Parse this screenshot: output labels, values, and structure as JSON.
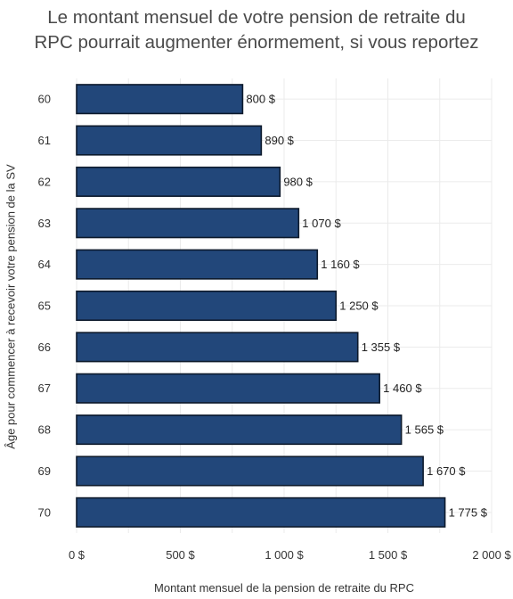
{
  "chart_data": {
    "type": "bar",
    "orientation": "horizontal",
    "title_lines": [
      "Le montant mensuel de votre pension de retraite du",
      "RPC pourrait augmenter énormement, si vous reportez"
    ],
    "xlabel": "Montant mensuel de la pension de retraite du RPC",
    "ylabel": "Âge pour commencer à recevoir votre pension de la SV",
    "categories": [
      "60",
      "61",
      "62",
      "63",
      "64",
      "65",
      "66",
      "67",
      "68",
      "69",
      "70"
    ],
    "values": [
      800,
      890,
      980,
      1070,
      1160,
      1250,
      1355,
      1460,
      1565,
      1670,
      1775
    ],
    "data_labels": [
      "800 $",
      "890 $",
      "980 $",
      "1 070 $",
      "1 160 $",
      "1 250 $",
      "1 355 $",
      "1 460 $",
      "1 565 $",
      "1 670 $",
      "1 775 $"
    ],
    "xlim": [
      0,
      2000
    ],
    "x_ticks": [
      0,
      500,
      1000,
      1500,
      2000
    ],
    "x_tick_labels": [
      "0 $",
      "500 $",
      "1 000 $",
      "1 500 $",
      "2 000 $"
    ],
    "bar_color": "#22477a",
    "bar_edge_color": "#0d1a2c",
    "grid": true,
    "legend": "none"
  }
}
